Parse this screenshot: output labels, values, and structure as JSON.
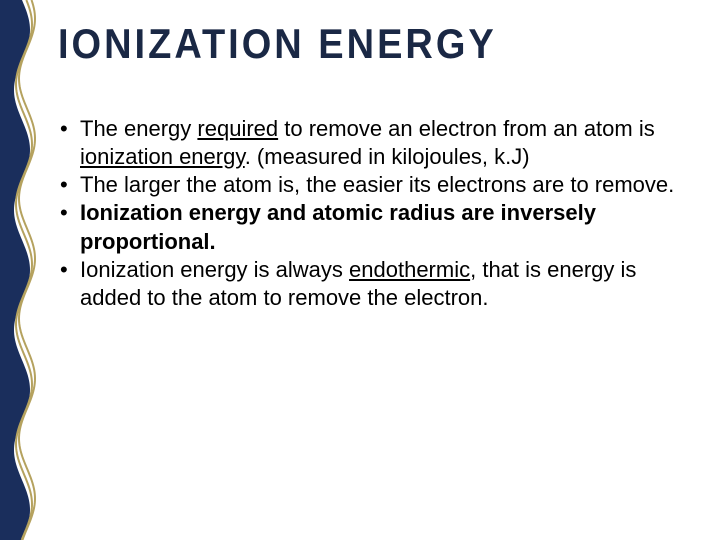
{
  "title": "IONIZATION ENERGY",
  "border": {
    "fill_color": "#1a2e5c",
    "wave_stroke": "#b5a25f",
    "wave_width": 2
  },
  "text_color": "#000000",
  "title_color": "#1a2845",
  "background_color": "#ffffff",
  "font_family": "Arial",
  "title_fontsize": 38,
  "body_fontsize": 22,
  "bullets": [
    {
      "segments": [
        {
          "text": "The energy ",
          "style": "normal"
        },
        {
          "text": "required",
          "style": "underline"
        },
        {
          "text": " to remove an electron from an atom is ",
          "style": "normal"
        },
        {
          "text": "ionization energy",
          "style": "underline"
        },
        {
          "text": ". (measured in kilojoules, k.J)",
          "style": "normal"
        }
      ]
    },
    {
      "segments": [
        {
          "text": "The larger the atom is, the easier its electrons are to remove.",
          "style": "normal"
        }
      ]
    },
    {
      "segments": [
        {
          "text": "Ionization energy and atomic radius are inversely proportional.",
          "style": "bold"
        }
      ]
    },
    {
      "segments": [
        {
          "text": "Ionization energy is always ",
          "style": "normal"
        },
        {
          "text": "endothermic",
          "style": "underline"
        },
        {
          "text": ", that is energy is added to the atom to remove the electron.",
          "style": "normal"
        }
      ]
    }
  ]
}
